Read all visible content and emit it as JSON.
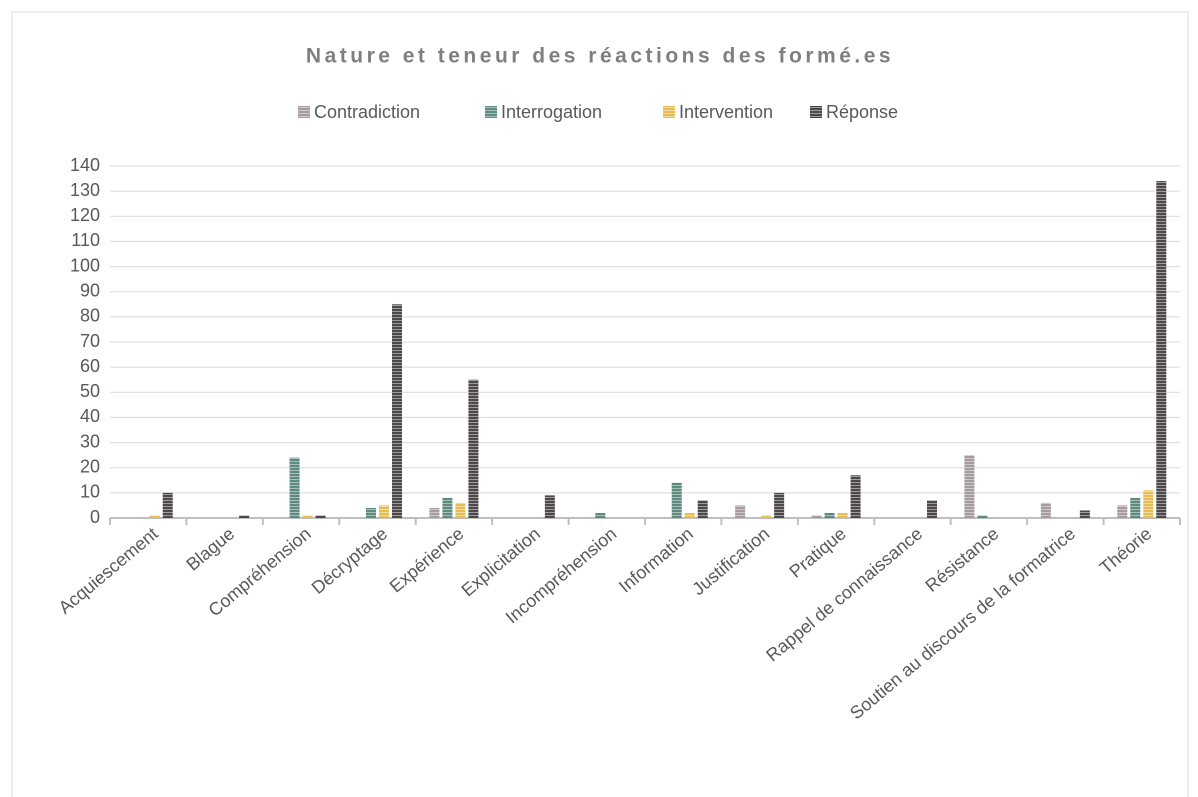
{
  "chart_data": {
    "type": "bar",
    "title": "Nature et teneur des réactions des formé.es",
    "categories": [
      "Acquiescement",
      "Blague",
      "Compréhension",
      "Décryptage",
      "Expérience",
      "Explicitation",
      "Incompréhension",
      "Information",
      "Justification",
      "Pratique",
      "Rappel de connaissance",
      "Résistance",
      "Soutien au discours de la formatrice",
      "Théorie"
    ],
    "series": [
      {
        "name": "Contradiction",
        "color": "#a59ba0",
        "values": [
          0,
          0,
          0,
          0,
          4,
          0,
          0,
          0,
          5,
          1,
          0,
          25,
          6,
          5
        ]
      },
      {
        "name": "Interrogation",
        "color": "#5e8a80",
        "values": [
          0,
          0,
          24,
          4,
          8,
          0,
          2,
          14,
          0,
          2,
          0,
          1,
          0,
          8
        ]
      },
      {
        "name": "Intervention",
        "color": "#e6bd55",
        "values": [
          1,
          0,
          1,
          5,
          6,
          0,
          0,
          2,
          1,
          2,
          0,
          0,
          0,
          11
        ]
      },
      {
        "name": "Réponse",
        "color": "#4d4849",
        "values": [
          10,
          1,
          1,
          85,
          55,
          9,
          0,
          7,
          10,
          17,
          7,
          0,
          3,
          134
        ]
      }
    ],
    "ylim": [
      0,
      140
    ],
    "yticks": [
      0,
      10,
      20,
      30,
      40,
      50,
      60,
      70,
      80,
      90,
      100,
      110,
      120,
      130,
      140
    ],
    "grid": true,
    "legend": "top"
  }
}
